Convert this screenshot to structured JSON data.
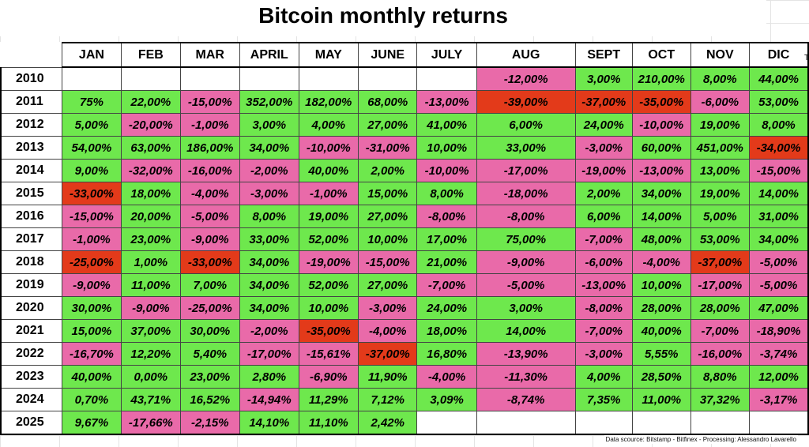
{
  "title": "Bitcoin monthly returns",
  "months": [
    "JAN",
    "FEB",
    "MAR",
    "APRIL",
    "MAY",
    "JUNE",
    "JULY",
    "AUG",
    "SEPT",
    "OCT",
    "NOV",
    "DIC"
  ],
  "stray_mark": "T",
  "colors": {
    "positive": "#6ee84d",
    "negative": "#e96aa9",
    "large_negative": "#e33a1a"
  },
  "rows": [
    {
      "year": "2010",
      "cells": [
        [
          "",
          ""
        ],
        [
          "",
          ""
        ],
        [
          "",
          ""
        ],
        [
          "",
          ""
        ],
        [
          "",
          ""
        ],
        [
          "",
          ""
        ],
        [
          "",
          ""
        ],
        [
          "-12,00%",
          "neg"
        ],
        [
          "3,00%",
          "pos"
        ],
        [
          "210,00%",
          "pos"
        ],
        [
          "8,00%",
          "pos"
        ],
        [
          "44,00%",
          "pos"
        ]
      ]
    },
    {
      "year": "2011",
      "cells": [
        [
          "75%",
          "pos"
        ],
        [
          "22,00%",
          "pos"
        ],
        [
          "-15,00%",
          "neg"
        ],
        [
          "352,00%",
          "pos"
        ],
        [
          "182,00%",
          "pos"
        ],
        [
          "68,00%",
          "pos"
        ],
        [
          "-13,00%",
          "neg"
        ],
        [
          "-39,00%",
          "big"
        ],
        [
          "-37,00%",
          "big"
        ],
        [
          "-35,00%",
          "big"
        ],
        [
          "-6,00%",
          "neg"
        ],
        [
          "53,00%",
          "pos"
        ]
      ]
    },
    {
      "year": "2012",
      "cells": [
        [
          "5,00%",
          "pos"
        ],
        [
          "-20,00%",
          "neg"
        ],
        [
          "-1,00%",
          "neg"
        ],
        [
          "3,00%",
          "pos"
        ],
        [
          "4,00%",
          "pos"
        ],
        [
          "27,00%",
          "pos"
        ],
        [
          "41,00%",
          "pos"
        ],
        [
          "6,00%",
          "pos"
        ],
        [
          "24,00%",
          "pos"
        ],
        [
          "-10,00%",
          "neg"
        ],
        [
          "19,00%",
          "pos"
        ],
        [
          "8,00%",
          "pos"
        ]
      ]
    },
    {
      "year": "2013",
      "cells": [
        [
          "54,00%",
          "pos"
        ],
        [
          "63,00%",
          "pos"
        ],
        [
          "186,00%",
          "pos"
        ],
        [
          "34,00%",
          "pos"
        ],
        [
          "-10,00%",
          "neg"
        ],
        [
          "-31,00%",
          "neg"
        ],
        [
          "10,00%",
          "pos"
        ],
        [
          "33,00%",
          "pos"
        ],
        [
          "-3,00%",
          "neg"
        ],
        [
          "60,00%",
          "pos"
        ],
        [
          "451,00%",
          "pos"
        ],
        [
          "-34,00%",
          "big"
        ]
      ]
    },
    {
      "year": "2014",
      "cells": [
        [
          "9,00%",
          "pos"
        ],
        [
          "-32,00%",
          "neg"
        ],
        [
          "-16,00%",
          "neg"
        ],
        [
          "-2,00%",
          "neg"
        ],
        [
          "40,00%",
          "pos"
        ],
        [
          "2,00%",
          "pos"
        ],
        [
          "-10,00%",
          "neg"
        ],
        [
          "-17,00%",
          "neg"
        ],
        [
          "-19,00%",
          "neg"
        ],
        [
          "-13,00%",
          "neg"
        ],
        [
          "13,00%",
          "pos"
        ],
        [
          "-15,00%",
          "neg"
        ]
      ]
    },
    {
      "year": "2015",
      "cells": [
        [
          "-33,00%",
          "big"
        ],
        [
          "18,00%",
          "pos"
        ],
        [
          "-4,00%",
          "neg"
        ],
        [
          "-3,00%",
          "neg"
        ],
        [
          "-1,00%",
          "neg"
        ],
        [
          "15,00%",
          "pos"
        ],
        [
          "8,00%",
          "pos"
        ],
        [
          "-18,00%",
          "neg"
        ],
        [
          "2,00%",
          "pos"
        ],
        [
          "34,00%",
          "pos"
        ],
        [
          "19,00%",
          "pos"
        ],
        [
          "14,00%",
          "pos"
        ]
      ]
    },
    {
      "year": "2016",
      "cells": [
        [
          "-15,00%",
          "neg"
        ],
        [
          "20,00%",
          "pos"
        ],
        [
          "-5,00%",
          "neg"
        ],
        [
          "8,00%",
          "pos"
        ],
        [
          "19,00%",
          "pos"
        ],
        [
          "27,00%",
          "pos"
        ],
        [
          "-8,00%",
          "neg"
        ],
        [
          "-8,00%",
          "neg"
        ],
        [
          "6,00%",
          "pos"
        ],
        [
          "14,00%",
          "pos"
        ],
        [
          "5,00%",
          "pos"
        ],
        [
          "31,00%",
          "pos"
        ]
      ]
    },
    {
      "year": "2017",
      "cells": [
        [
          "-1,00%",
          "neg"
        ],
        [
          "23,00%",
          "pos"
        ],
        [
          "-9,00%",
          "neg"
        ],
        [
          "33,00%",
          "pos"
        ],
        [
          "52,00%",
          "pos"
        ],
        [
          "10,00%",
          "pos"
        ],
        [
          "17,00%",
          "pos"
        ],
        [
          "75,00%",
          "pos"
        ],
        [
          "-7,00%",
          "neg"
        ],
        [
          "48,00%",
          "pos"
        ],
        [
          "53,00%",
          "pos"
        ],
        [
          "34,00%",
          "pos"
        ]
      ]
    },
    {
      "year": "2018",
      "cells": [
        [
          "-25,00%",
          "big"
        ],
        [
          "1,00%",
          "pos"
        ],
        [
          "-33,00%",
          "big"
        ],
        [
          "34,00%",
          "pos"
        ],
        [
          "-19,00%",
          "neg"
        ],
        [
          "-15,00%",
          "neg"
        ],
        [
          "21,00%",
          "pos"
        ],
        [
          "-9,00%",
          "neg"
        ],
        [
          "-6,00%",
          "neg"
        ],
        [
          "-4,00%",
          "neg"
        ],
        [
          "-37,00%",
          "big"
        ],
        [
          "-5,00%",
          "neg"
        ]
      ]
    },
    {
      "year": "2019",
      "cells": [
        [
          "-9,00%",
          "neg"
        ],
        [
          "11,00%",
          "pos"
        ],
        [
          "7,00%",
          "pos"
        ],
        [
          "34,00%",
          "pos"
        ],
        [
          "52,00%",
          "pos"
        ],
        [
          "27,00%",
          "pos"
        ],
        [
          "-7,00%",
          "neg"
        ],
        [
          "-5,00%",
          "neg"
        ],
        [
          "-13,00%",
          "neg"
        ],
        [
          "10,00%",
          "pos"
        ],
        [
          "-17,00%",
          "neg"
        ],
        [
          "-5,00%",
          "neg"
        ]
      ]
    },
    {
      "year": "2020",
      "cells": [
        [
          "30,00%",
          "pos"
        ],
        [
          "-9,00%",
          "neg"
        ],
        [
          "-25,00%",
          "neg"
        ],
        [
          "34,00%",
          "pos"
        ],
        [
          "10,00%",
          "pos"
        ],
        [
          "-3,00%",
          "neg"
        ],
        [
          "24,00%",
          "pos"
        ],
        [
          "3,00%",
          "pos"
        ],
        [
          "-8,00%",
          "neg"
        ],
        [
          "28,00%",
          "pos"
        ],
        [
          "28,00%",
          "pos"
        ],
        [
          "47,00%",
          "pos"
        ]
      ]
    },
    {
      "year": "2021",
      "cells": [
        [
          "15,00%",
          "pos"
        ],
        [
          "37,00%",
          "pos"
        ],
        [
          "30,00%",
          "pos"
        ],
        [
          "-2,00%",
          "neg"
        ],
        [
          "-35,00%",
          "big"
        ],
        [
          "-4,00%",
          "neg"
        ],
        [
          "18,00%",
          "pos"
        ],
        [
          "14,00%",
          "pos"
        ],
        [
          "-7,00%",
          "neg"
        ],
        [
          "40,00%",
          "pos"
        ],
        [
          "-7,00%",
          "neg"
        ],
        [
          "-18,90%",
          "neg"
        ]
      ]
    },
    {
      "year": "2022",
      "cells": [
        [
          "-16,70%",
          "neg"
        ],
        [
          "12,20%",
          "pos"
        ],
        [
          "5,40%",
          "pos"
        ],
        [
          "-17,00%",
          "neg"
        ],
        [
          "-15,61%",
          "neg"
        ],
        [
          "-37,00%",
          "big"
        ],
        [
          "16,80%",
          "pos"
        ],
        [
          "-13,90%",
          "neg"
        ],
        [
          "-3,00%",
          "neg"
        ],
        [
          "5,55%",
          "pos"
        ],
        [
          "-16,00%",
          "neg"
        ],
        [
          "-3,74%",
          "neg"
        ]
      ]
    },
    {
      "year": "2023",
      "cells": [
        [
          "40,00%",
          "pos"
        ],
        [
          "0,00%",
          "pos"
        ],
        [
          "23,00%",
          "pos"
        ],
        [
          "2,80%",
          "pos"
        ],
        [
          "-6,90%",
          "neg"
        ],
        [
          "11,90%",
          "pos"
        ],
        [
          "-4,00%",
          "neg"
        ],
        [
          "-11,30%",
          "neg"
        ],
        [
          "4,00%",
          "pos"
        ],
        [
          "28,50%",
          "pos"
        ],
        [
          "8,80%",
          "pos"
        ],
        [
          "12,00%",
          "pos"
        ]
      ]
    },
    {
      "year": "2024",
      "cells": [
        [
          "0,70%",
          "pos"
        ],
        [
          "43,71%",
          "pos"
        ],
        [
          "16,52%",
          "pos"
        ],
        [
          "-14,94%",
          "neg"
        ],
        [
          "11,29%",
          "pos"
        ],
        [
          "7,12%",
          "pos"
        ],
        [
          "3,09%",
          "pos"
        ],
        [
          "-8,74%",
          "neg"
        ],
        [
          "7,35%",
          "pos"
        ],
        [
          "11,00%",
          "pos"
        ],
        [
          "37,32%",
          "pos"
        ],
        [
          "-3,17%",
          "neg"
        ]
      ]
    },
    {
      "year": "2025",
      "cells": [
        [
          "9,67%",
          "pos"
        ],
        [
          "-17,66%",
          "neg"
        ],
        [
          "-2,15%",
          "neg"
        ],
        [
          "14,10%",
          "pos"
        ],
        [
          "11,10%",
          "pos"
        ],
        [
          "2,42%",
          "pos"
        ],
        [
          "",
          ""
        ],
        [
          "",
          ""
        ],
        [
          "",
          ""
        ],
        [
          "",
          ""
        ],
        [
          "",
          ""
        ],
        [
          "",
          ""
        ]
      ]
    }
  ],
  "source_note": "Data scource: Bitstamp - Bitfinex - Processing: Alessandro Lavarello"
}
